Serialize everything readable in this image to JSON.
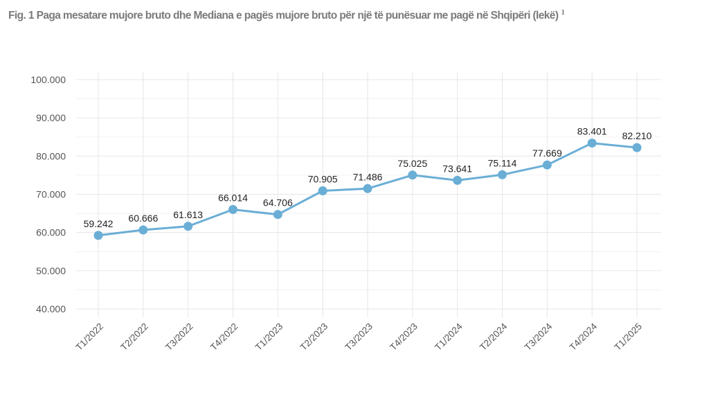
{
  "title": "Fig. 1 Paga mesatare  mujore bruto dhe Mediana e pagës mujore bruto për një të punësuar me pagë në Shqipëri (lekë)",
  "footnote_mark": "1",
  "chart_data": {
    "type": "line",
    "title": "Fig. 1 Paga mesatare  mujore bruto dhe Mediana e pagës mujore bruto për një të punësuar me pagë në Shqipëri (lekë)",
    "xlabel": "",
    "ylabel": "",
    "categories": [
      "T1/2022",
      "T2/2022",
      "T3/2022",
      "T4/2022",
      "T1/2023",
      "T2/2023",
      "T3/2023",
      "T4/2023",
      "T1/2024",
      "T2/2024",
      "T3/2024",
      "T4/2024",
      "T1/2025"
    ],
    "series": [
      {
        "name": "Paga mesatare mujore bruto",
        "values": [
          59242,
          60666,
          61613,
          66014,
          64706,
          70905,
          71486,
          75025,
          73641,
          75114,
          77669,
          83401,
          82210
        ],
        "labels": [
          "59.242",
          "60.666",
          "61.613",
          "66.014",
          "64.706",
          "70.905",
          "71.486",
          "75.025",
          "73.641",
          "75.114",
          "77.669",
          "83.401",
          "82.210"
        ]
      }
    ],
    "ylim": [
      40000,
      100000
    ],
    "yticks": [
      40000,
      50000,
      60000,
      70000,
      80000,
      90000,
      100000
    ],
    "ytick_labels": [
      "40.000",
      "50.000",
      "60.000",
      "70.000",
      "80.000",
      "90.000",
      "100.000"
    ],
    "grid": true,
    "color": "#6aaed6"
  }
}
